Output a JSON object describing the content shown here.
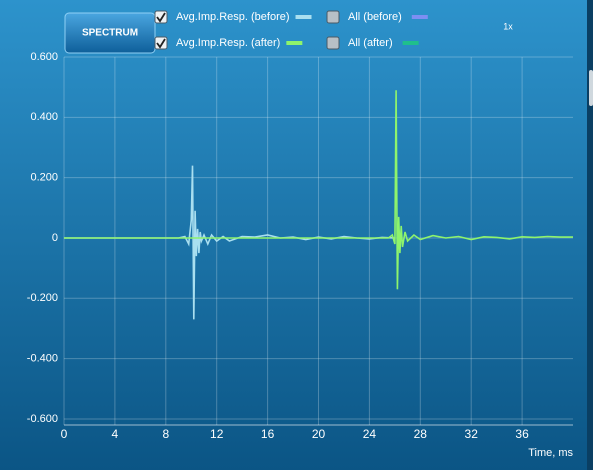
{
  "chart_data": {
    "type": "line",
    "button": "SPECTRUM",
    "zoom": "1x",
    "xlabel": "Time, ms",
    "xlim": [
      0,
      40
    ],
    "xticks": [
      0,
      4,
      8,
      12,
      16,
      20,
      24,
      28,
      32,
      36
    ],
    "ylim": [
      -0.62,
      0.6
    ],
    "yticks": [
      {
        "value": 0.6,
        "label": "0.600"
      },
      {
        "value": 0.4,
        "label": "0.400"
      },
      {
        "value": 0.2,
        "label": "0.200"
      },
      0,
      {
        "value": -0.2,
        "label": "-0.200"
      },
      {
        "value": -0.4,
        "label": "-0.400"
      },
      {
        "value": -0.6,
        "label": "-0.600"
      }
    ],
    "grid": true,
    "series": [
      {
        "name": "Avg.Imp.Resp. (before)",
        "color": "#a9dff0",
        "checked": true,
        "x": [
          0,
          9,
          9.5,
          9.8,
          10.0,
          10.1,
          10.2,
          10.3,
          10.4,
          10.5,
          10.6,
          10.7,
          10.8,
          11,
          11.3,
          11.6,
          12,
          12.5,
          13,
          14,
          15,
          16,
          17,
          18,
          19,
          20,
          21,
          22,
          23,
          24,
          25,
          26
        ],
        "values": [
          0,
          0,
          0.005,
          -0.02,
          0.06,
          0.24,
          -0.27,
          0.09,
          -0.06,
          0.03,
          -0.05,
          0.02,
          -0.01,
          0.01,
          -0.02,
          0.01,
          -0.01,
          0.005,
          -0.01,
          0.005,
          0.003,
          0.01,
          0,
          0.003,
          -0.005,
          0.003,
          -0.003,
          0.005,
          0,
          -0.003,
          0.002,
          0
        ]
      },
      {
        "name": "Avg.Imp.Resp. (after)",
        "color": "#8ef46c",
        "checked": true,
        "x": [
          0,
          25.5,
          25.8,
          26.0,
          26.1,
          26.2,
          26.3,
          26.4,
          26.5,
          26.6,
          26.8,
          27,
          27.5,
          28,
          29,
          30,
          31,
          32,
          33,
          34,
          35,
          36,
          37,
          38,
          39,
          40
        ],
        "values": [
          0,
          0,
          0.01,
          -0.02,
          0.49,
          -0.17,
          0.07,
          -0.05,
          0.04,
          -0.03,
          0.02,
          -0.01,
          0.01,
          -0.005,
          0.008,
          0,
          0.005,
          -0.005,
          0.004,
          0.002,
          -0.003,
          0.004,
          0.002,
          0.005,
          0.003,
          0.003
        ]
      }
    ],
    "toggles": [
      {
        "name": "All (before)",
        "color": "#7d8ff2",
        "checked": false
      },
      {
        "name": "All (after)",
        "color": "#1fbf8c",
        "checked": false
      }
    ]
  }
}
